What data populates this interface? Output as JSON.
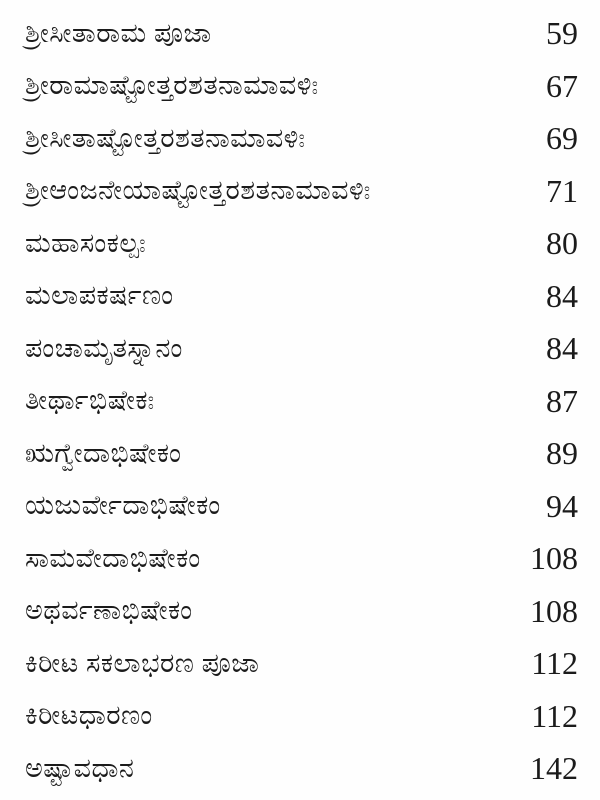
{
  "page": {
    "background_color": "#fefefe",
    "text_color": "#1b1b1b",
    "kind": "book-table-of-contents"
  },
  "toc": {
    "entries": [
      {
        "title": "ಶ್ರೀಸೀತಾರಾಮ ಪೂಜಾ",
        "page": "59"
      },
      {
        "title": "ಶ್ರೀರಾಮಾಷ್ಟೋತ್ತರಶತನಾಮಾವಳಿಃ",
        "page": "67"
      },
      {
        "title": "ಶ್ರೀಸೀತಾಷ್ಟೋತ್ತರಶತನಾಮಾವಳಿಃ",
        "page": "69"
      },
      {
        "title": "ಶ್ರೀಆಂಜನೇಯಾಷ್ಟೋತ್ತರಶತನಾಮಾವಳಿಃ",
        "page": "71"
      },
      {
        "title": "ಮಹಾಸಂಕಲ್ಪಃ",
        "page": "80"
      },
      {
        "title": "ಮಲಾಪಕರ್ಷಣಂ",
        "page": "84"
      },
      {
        "title": "ಪಂಚಾಮೃತಸ್ನಾನಂ",
        "page": "84"
      },
      {
        "title": "ತೀರ್ಥಾಭಿಷೇಕಃ",
        "page": "87"
      },
      {
        "title": "ಋಗ್ವೇದಾಭಿಷೇಕಂ",
        "page": "89"
      },
      {
        "title": "ಯಜುರ್ವೇದಾಭಿಷೇಕಂ",
        "page": "94"
      },
      {
        "title": "ಸಾಮವೇದಾಭಿಷೇಕಂ",
        "page": "108"
      },
      {
        "title": "ಅಥರ್ವಣಾಭಿಷೇಕಂ",
        "page": "108"
      },
      {
        "title": "ಕಿರೀಟ ಸಕಲಾಭರಣ ಪೂಜಾ",
        "page": "112"
      },
      {
        "title": "ಕಿರೀಟಧಾರಣಂ",
        "page": "112"
      },
      {
        "title": "ಅಷ್ಟಾವಧಾನ",
        "page": "142"
      }
    ]
  }
}
